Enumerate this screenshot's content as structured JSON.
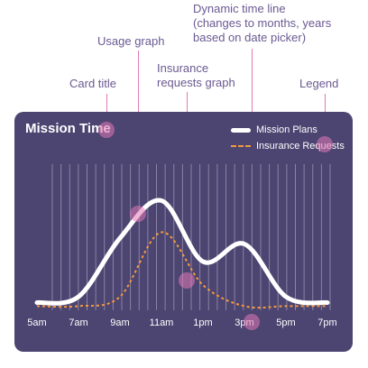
{
  "annotations": {
    "dynamic_timeline": "Dynamic time line\n(changes to months, years\nbased on date picker)",
    "usage_graph": "Usage graph",
    "insurance_requests_graph": "Insurance\nrequests graph",
    "card_title": "Card title",
    "legend": "Legend"
  },
  "card": {
    "title": "Mission Time",
    "legend": {
      "mission_plans": "Mission Plans",
      "insurance_requests": "Insurance Requests"
    },
    "time_axis": [
      "5am",
      "7am",
      "9am",
      "11am",
      "1pm",
      "3pm",
      "5pm",
      "7pm"
    ]
  },
  "colors": {
    "card_bg": "#4c4471",
    "usage_line": "#ffffff",
    "insurance_line": "#f29a3f",
    "annotation_text": "#6a5a92",
    "annotation_accent": "#e27ab7"
  },
  "chart_data": {
    "type": "line",
    "title": "Mission Time",
    "categories": [
      "5am",
      "7am",
      "9am",
      "11am",
      "1pm",
      "3pm",
      "5pm",
      "7pm"
    ],
    "series": [
      {
        "name": "Mission Plans",
        "values": [
          0.05,
          0.1,
          0.6,
          0.92,
          0.4,
          0.55,
          0.1,
          0.05
        ]
      },
      {
        "name": "Insurance Requests",
        "values": [
          0.02,
          0.02,
          0.1,
          0.65,
          0.2,
          0.02,
          0.02,
          0.02
        ]
      }
    ],
    "grid": "vertical",
    "legend_position": "top-right"
  }
}
